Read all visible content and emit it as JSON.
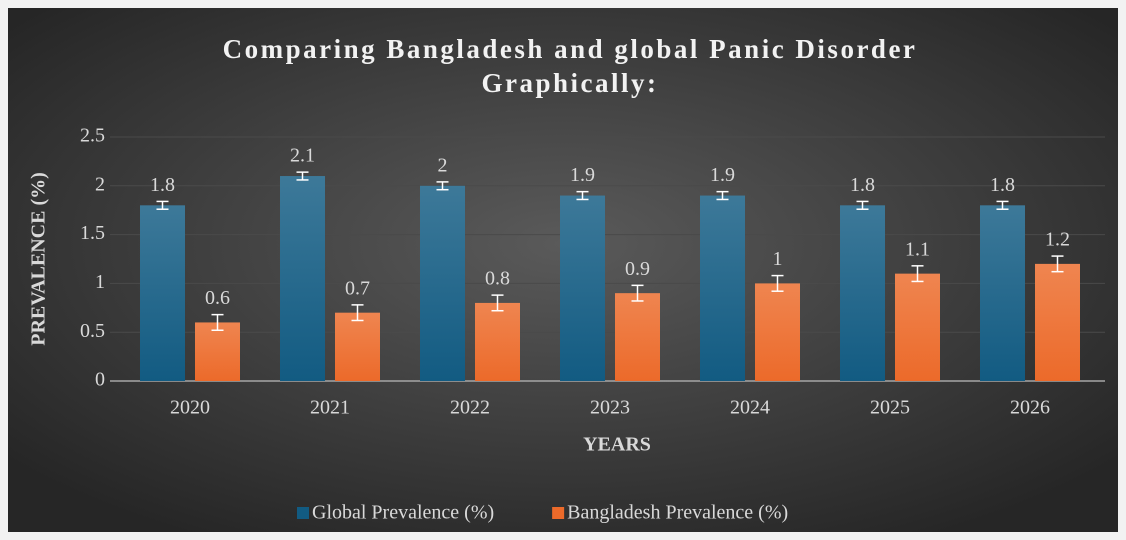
{
  "chart_data": {
    "type": "bar",
    "title": [
      "Comparing Bangladesh and global Panic Disorder",
      "Graphically:"
    ],
    "x_label": "YEARS",
    "y_label": "PREVALENCE (%)",
    "categories": [
      "2020",
      "2021",
      "2022",
      "2023",
      "2024",
      "2025",
      "2026"
    ],
    "series": [
      {
        "name": "Global Prevalence (%)",
        "color": "#125b82",
        "values": [
          1.8,
          2.1,
          2,
          1.9,
          1.9,
          1.8,
          1.8
        ],
        "errors": [
          0.04,
          0.04,
          0.04,
          0.04,
          0.04,
          0.04,
          0.04
        ]
      },
      {
        "name": "Bangladesh Prevalence (%)",
        "color": "#ec6a2a",
        "values": [
          0.6,
          0.7,
          0.8,
          0.9,
          1,
          1.1,
          1.2
        ],
        "errors": [
          0.08,
          0.08,
          0.08,
          0.08,
          0.08,
          0.08,
          0.08
        ]
      }
    ],
    "ylim": [
      0,
      2.5
    ],
    "yticks": [
      0,
      0.5,
      1,
      1.5,
      2,
      2.5
    ],
    "grid": true,
    "legend": "bottom"
  }
}
